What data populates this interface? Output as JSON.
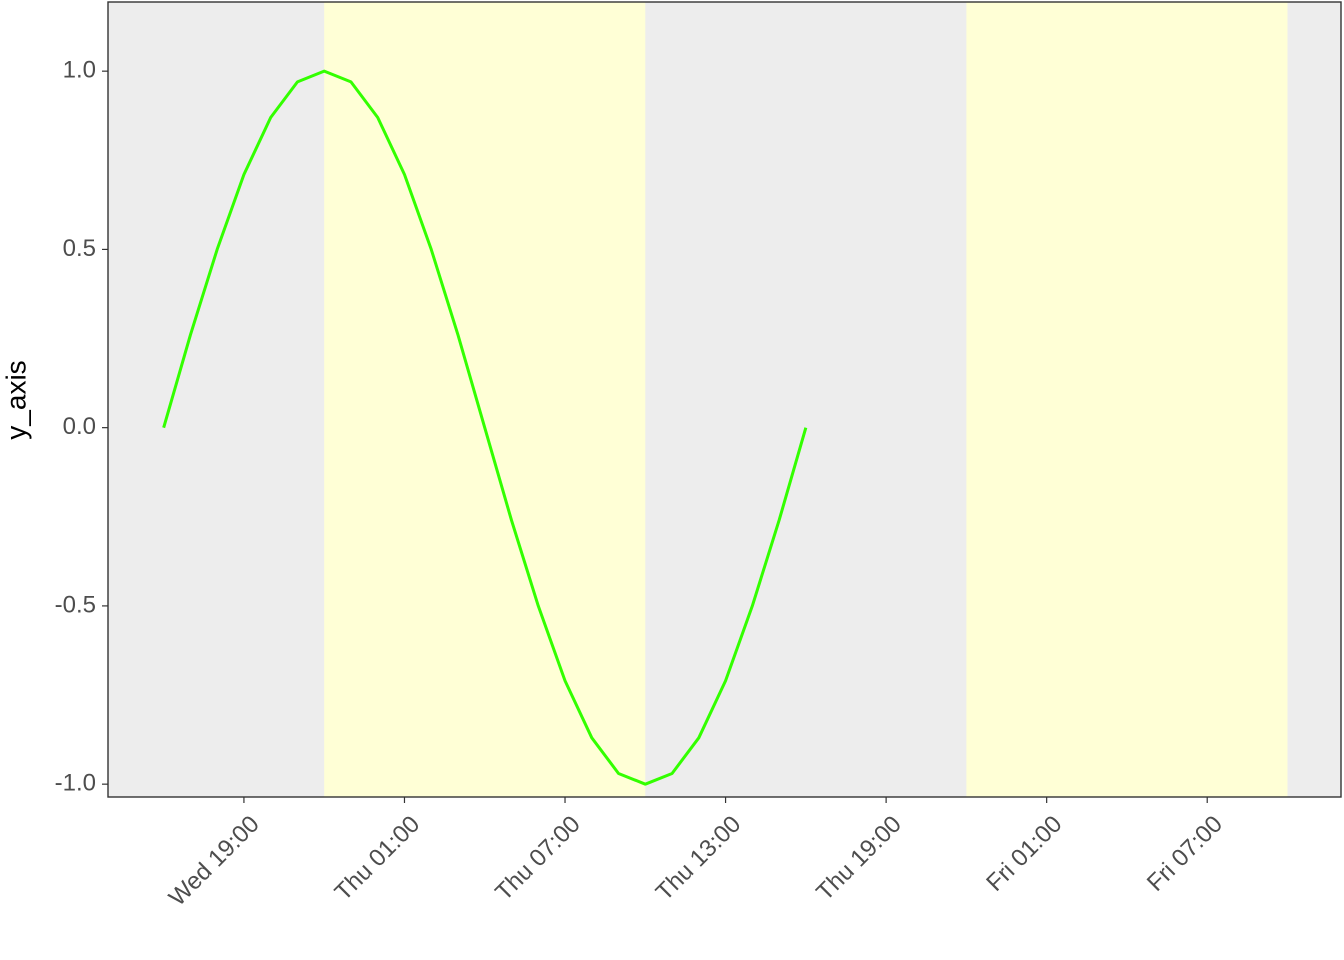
{
  "chart_data": {
    "type": "line",
    "ylabel": "y_axis",
    "x": [
      16,
      17,
      18,
      19,
      20,
      21,
      22,
      23,
      24,
      25,
      26,
      27,
      28,
      29,
      30,
      31,
      32,
      33,
      34,
      35,
      36,
      37,
      38,
      39,
      40
    ],
    "values": [
      0,
      0.26,
      0.5,
      0.71,
      0.87,
      0.97,
      1,
      0.97,
      0.87,
      0.71,
      0.5,
      0.26,
      0,
      -0.26,
      -0.5,
      -0.71,
      -0.87,
      -0.97,
      -1,
      -0.97,
      -0.87,
      -0.71,
      -0.5,
      -0.26,
      0
    ],
    "color": "#33ff00",
    "shaded_regions": [
      {
        "xmin": 22,
        "xmax": 34
      },
      {
        "xmin": 46,
        "xmax": 58
      }
    ],
    "shade_color": "#ffffd6",
    "background": "#ededed",
    "xlim": [
      13.92,
      60.0
    ],
    "xticks": [
      {
        "value": 19,
        "label": "Wed 19:00"
      },
      {
        "value": 25,
        "label": "Thu 01:00"
      },
      {
        "value": 31,
        "label": "Thu 07:00"
      },
      {
        "value": 37,
        "label": "Thu 13:00"
      },
      {
        "value": 43,
        "label": "Thu 19:00"
      },
      {
        "value": 49,
        "label": "Fri 01:00"
      },
      {
        "value": 55,
        "label": "Fri 07:00"
      }
    ],
    "ylim": [
      -1.036,
      1.194
    ],
    "yticks": [
      {
        "value": -1,
        "label": "-1.0"
      },
      {
        "value": -0.5,
        "label": "-0.5"
      },
      {
        "value": 0,
        "label": "0.0"
      },
      {
        "value": 0.5,
        "label": "0.5"
      },
      {
        "value": 1,
        "label": "1.0"
      }
    ]
  }
}
